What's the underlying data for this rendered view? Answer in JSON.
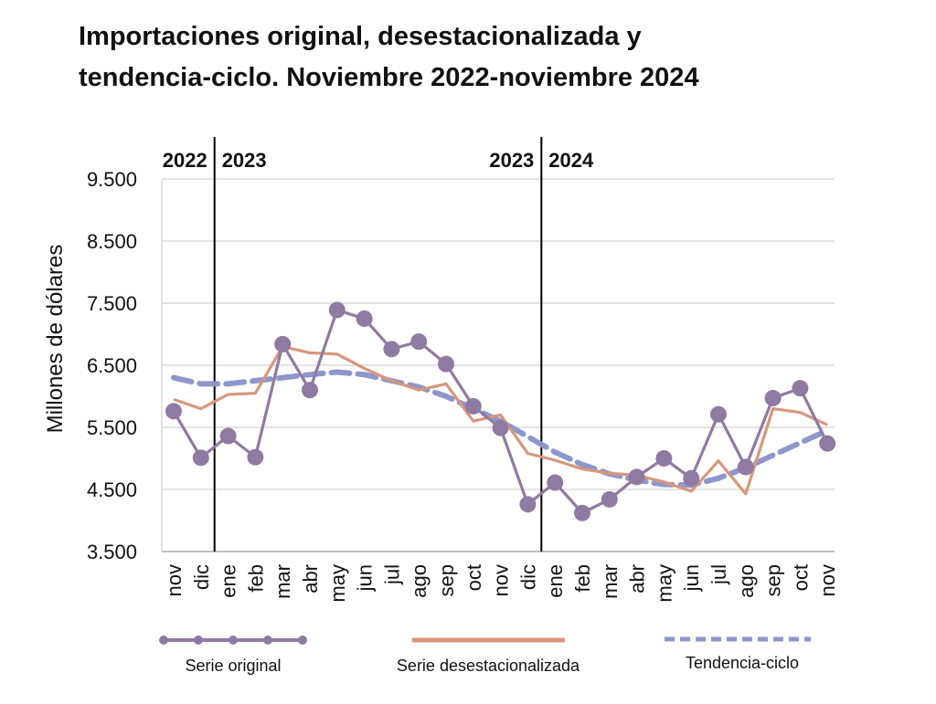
{
  "chart_data": {
    "type": "line",
    "title_lines": [
      "Importaciones original, desestacionalizada y",
      "tendencia-ciclo. Noviembre 2022-noviembre 2024"
    ],
    "ylabel": "Millones de dólares",
    "ylim": [
      3500,
      9500
    ],
    "yticks": [
      9500,
      8500,
      7500,
      6500,
      5500,
      4500,
      3500
    ],
    "ytick_labels": [
      "9.500",
      "8.500",
      "7.500",
      "6.500",
      "5.500",
      "4.500",
      "3.500"
    ],
    "grid": true,
    "categories": [
      "nov",
      "dic",
      "ene",
      "feb",
      "mar",
      "abr",
      "may",
      "jun",
      "jul",
      "ago",
      "sep",
      "oct",
      "nov",
      "dic",
      "ene",
      "feb",
      "mar",
      "abr",
      "may",
      "jun",
      "jul",
      "ago",
      "sep",
      "oct",
      "nov"
    ],
    "year_markers": [
      {
        "between": [
          1,
          2
        ],
        "left_label": "2022",
        "right_label": "2023"
      },
      {
        "between": [
          13,
          14
        ],
        "left_label": "2023",
        "right_label": "2024"
      }
    ],
    "series": [
      {
        "name": "Serie original",
        "color": "#8f7aa2",
        "style": "line-markers",
        "values": [
          5760,
          5010,
          5360,
          5020,
          6840,
          6100,
          7390,
          7250,
          6760,
          6880,
          6520,
          5840,
          5490,
          4260,
          4610,
          4120,
          4340,
          4700,
          5000,
          4680,
          5710,
          4860,
          5970,
          6130,
          5240
        ]
      },
      {
        "name": "Serie desestacionalizada",
        "color": "#d7977c",
        "style": "line",
        "values": [
          5950,
          5800,
          6030,
          6050,
          6800,
          6700,
          6680,
          6450,
          6250,
          6100,
          6200,
          5600,
          5700,
          5080,
          4970,
          4830,
          4760,
          4730,
          4620,
          4470,
          4960,
          4430,
          5800,
          5740,
          5540
        ]
      },
      {
        "name": "Tendencia-ciclo",
        "color": "#8e96cc",
        "style": "dashed",
        "values": [
          6300,
          6200,
          6200,
          6250,
          6300,
          6350,
          6390,
          6350,
          6250,
          6150,
          6000,
          5800,
          5600,
          5350,
          5100,
          4900,
          4750,
          4650,
          4580,
          4570,
          4680,
          4850,
          5050,
          5250,
          5450
        ]
      }
    ],
    "legend_position": "bottom"
  }
}
